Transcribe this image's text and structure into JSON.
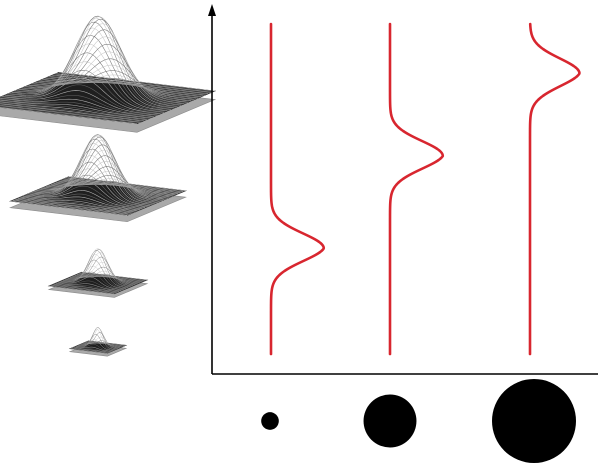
{
  "colors": {
    "background": "#ffffff",
    "axis": "#000000",
    "curve": "#d8262f",
    "surface_dark": "#1f1f1f",
    "surface_mid": "#6a6a6a",
    "surface_light": "#c4c4c4",
    "base_plane": "#a9a9a9",
    "disc": "#000000"
  },
  "panels": [
    {
      "id": "large",
      "relative_size": 1.0
    },
    {
      "id": "medium",
      "relative_size": 0.75
    },
    {
      "id": "small",
      "relative_size": 0.42
    },
    {
      "id": "tiny",
      "relative_size": 0.24
    }
  ],
  "curves": [
    {
      "id": "curve-1",
      "bump_level": 0.32,
      "bump_amplitude": 0.48
    },
    {
      "id": "curve-2",
      "bump_level": 0.6,
      "bump_amplitude": 0.48
    },
    {
      "id": "curve-3",
      "bump_level": 0.85,
      "bump_amplitude": 0.45
    }
  ],
  "discs": [
    {
      "id": "disc-small",
      "relative_size": 0.21
    },
    {
      "id": "disc-medium",
      "relative_size": 0.63
    },
    {
      "id": "disc-large",
      "relative_size": 1.0
    }
  ]
}
